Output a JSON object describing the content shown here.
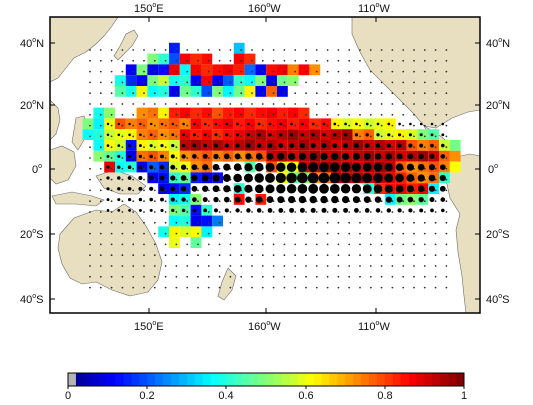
{
  "map": {
    "top_lon_labels": [
      {
        "deg": "150",
        "dir": "E"
      },
      {
        "deg": "160",
        "dir": "W"
      },
      {
        "deg": "110",
        "dir": "W"
      }
    ],
    "bottom_lon_labels": [
      {
        "deg": "150",
        "dir": "E"
      },
      {
        "deg": "160",
        "dir": "W"
      },
      {
        "deg": "110",
        "dir": "W"
      }
    ],
    "left_lat_labels": [
      {
        "deg": "40",
        "dir": "N"
      },
      {
        "deg": "20",
        "dir": "N"
      },
      {
        "deg": "0",
        "dir": ""
      },
      {
        "deg": "20",
        "dir": "S"
      },
      {
        "deg": "40",
        "dir": "S"
      }
    ],
    "right_lat_labels": [
      {
        "deg": "40",
        "dir": "N"
      },
      {
        "deg": "20",
        "dir": "N"
      },
      {
        "deg": "0",
        "dir": ""
      },
      {
        "deg": "20",
        "dir": "S"
      },
      {
        "deg": "40",
        "dir": "S"
      }
    ],
    "land_color": "#e8dfc0",
    "land_outline_color": "#6b6b6b",
    "ocean_color": "#ffffff"
  },
  "colorbar": {
    "tick_labels": [
      "0",
      "0.2",
      "0.4",
      "0.6",
      "0.8",
      "1"
    ],
    "range": [
      0,
      1
    ],
    "colormap": "jet"
  }
}
